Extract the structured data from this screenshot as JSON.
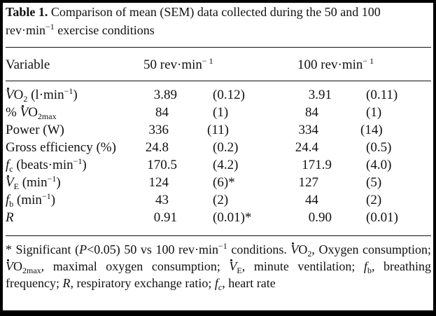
{
  "table": {
    "label": "Table 1.",
    "caption": "Comparison of mean (SEM) data collected during the 50 and 100 rev·min⁻¹ exercise conditions",
    "header": {
      "variable": "Variable",
      "c50": "50 rev·min",
      "c100": "100 rev·min",
      "exp": "− 1"
    },
    "rows": [
      {
        "name": "VO2 (l·min-1)",
        "m50": "3.89",
        "s50": "(0.12)",
        "m100": "3.91",
        "s100": "(0.11)"
      },
      {
        "name": "% VO2max",
        "m50": "84",
        "s50": "(1)",
        "m100": "84",
        "s100": "(1)"
      },
      {
        "name": "Power (W)",
        "m50": "336",
        "s50": "(11)",
        "m100": "334",
        "s100": "(14)"
      },
      {
        "name": "Gross efficiency (%)",
        "m50": "24.8",
        "s50": "(0.2)",
        "m100": "24.4",
        "s100": "(0.5)"
      },
      {
        "name": "fc (beats·min-1)",
        "m50": "170.5",
        "s50": "(4.2)",
        "m100": "171.9",
        "s100": "(4.0)"
      },
      {
        "name": "VE (min-1)",
        "m50": "124",
        "s50": "(6)*",
        "m100": "127",
        "s100": "(5)"
      },
      {
        "name": "fb (min-1)",
        "m50": "43",
        "s50": "(2)",
        "m100": "44",
        "s100": "(2)"
      },
      {
        "name": "R",
        "m50": "0.91",
        "s50": "(0.01)*",
        "m100": "0.90",
        "s100": "(0.01)"
      }
    ],
    "row_labels": {
      "vo2_unit": "(l·min",
      "pct": "%",
      "max": "2max",
      "beats": "(beats·min",
      "min": "(min",
      "close": ")",
      "exp": "−1"
    },
    "footnote": "* Significant (P<0.05) 50 vs 100 rev·min⁻¹ conditions. VO2, Oxygen consumption; VO2max, maximal oxygen consumption; VE, minute ventilation; fb, breathing frequency; R, respiratory exchange ratio; fc, heart rate"
  }
}
